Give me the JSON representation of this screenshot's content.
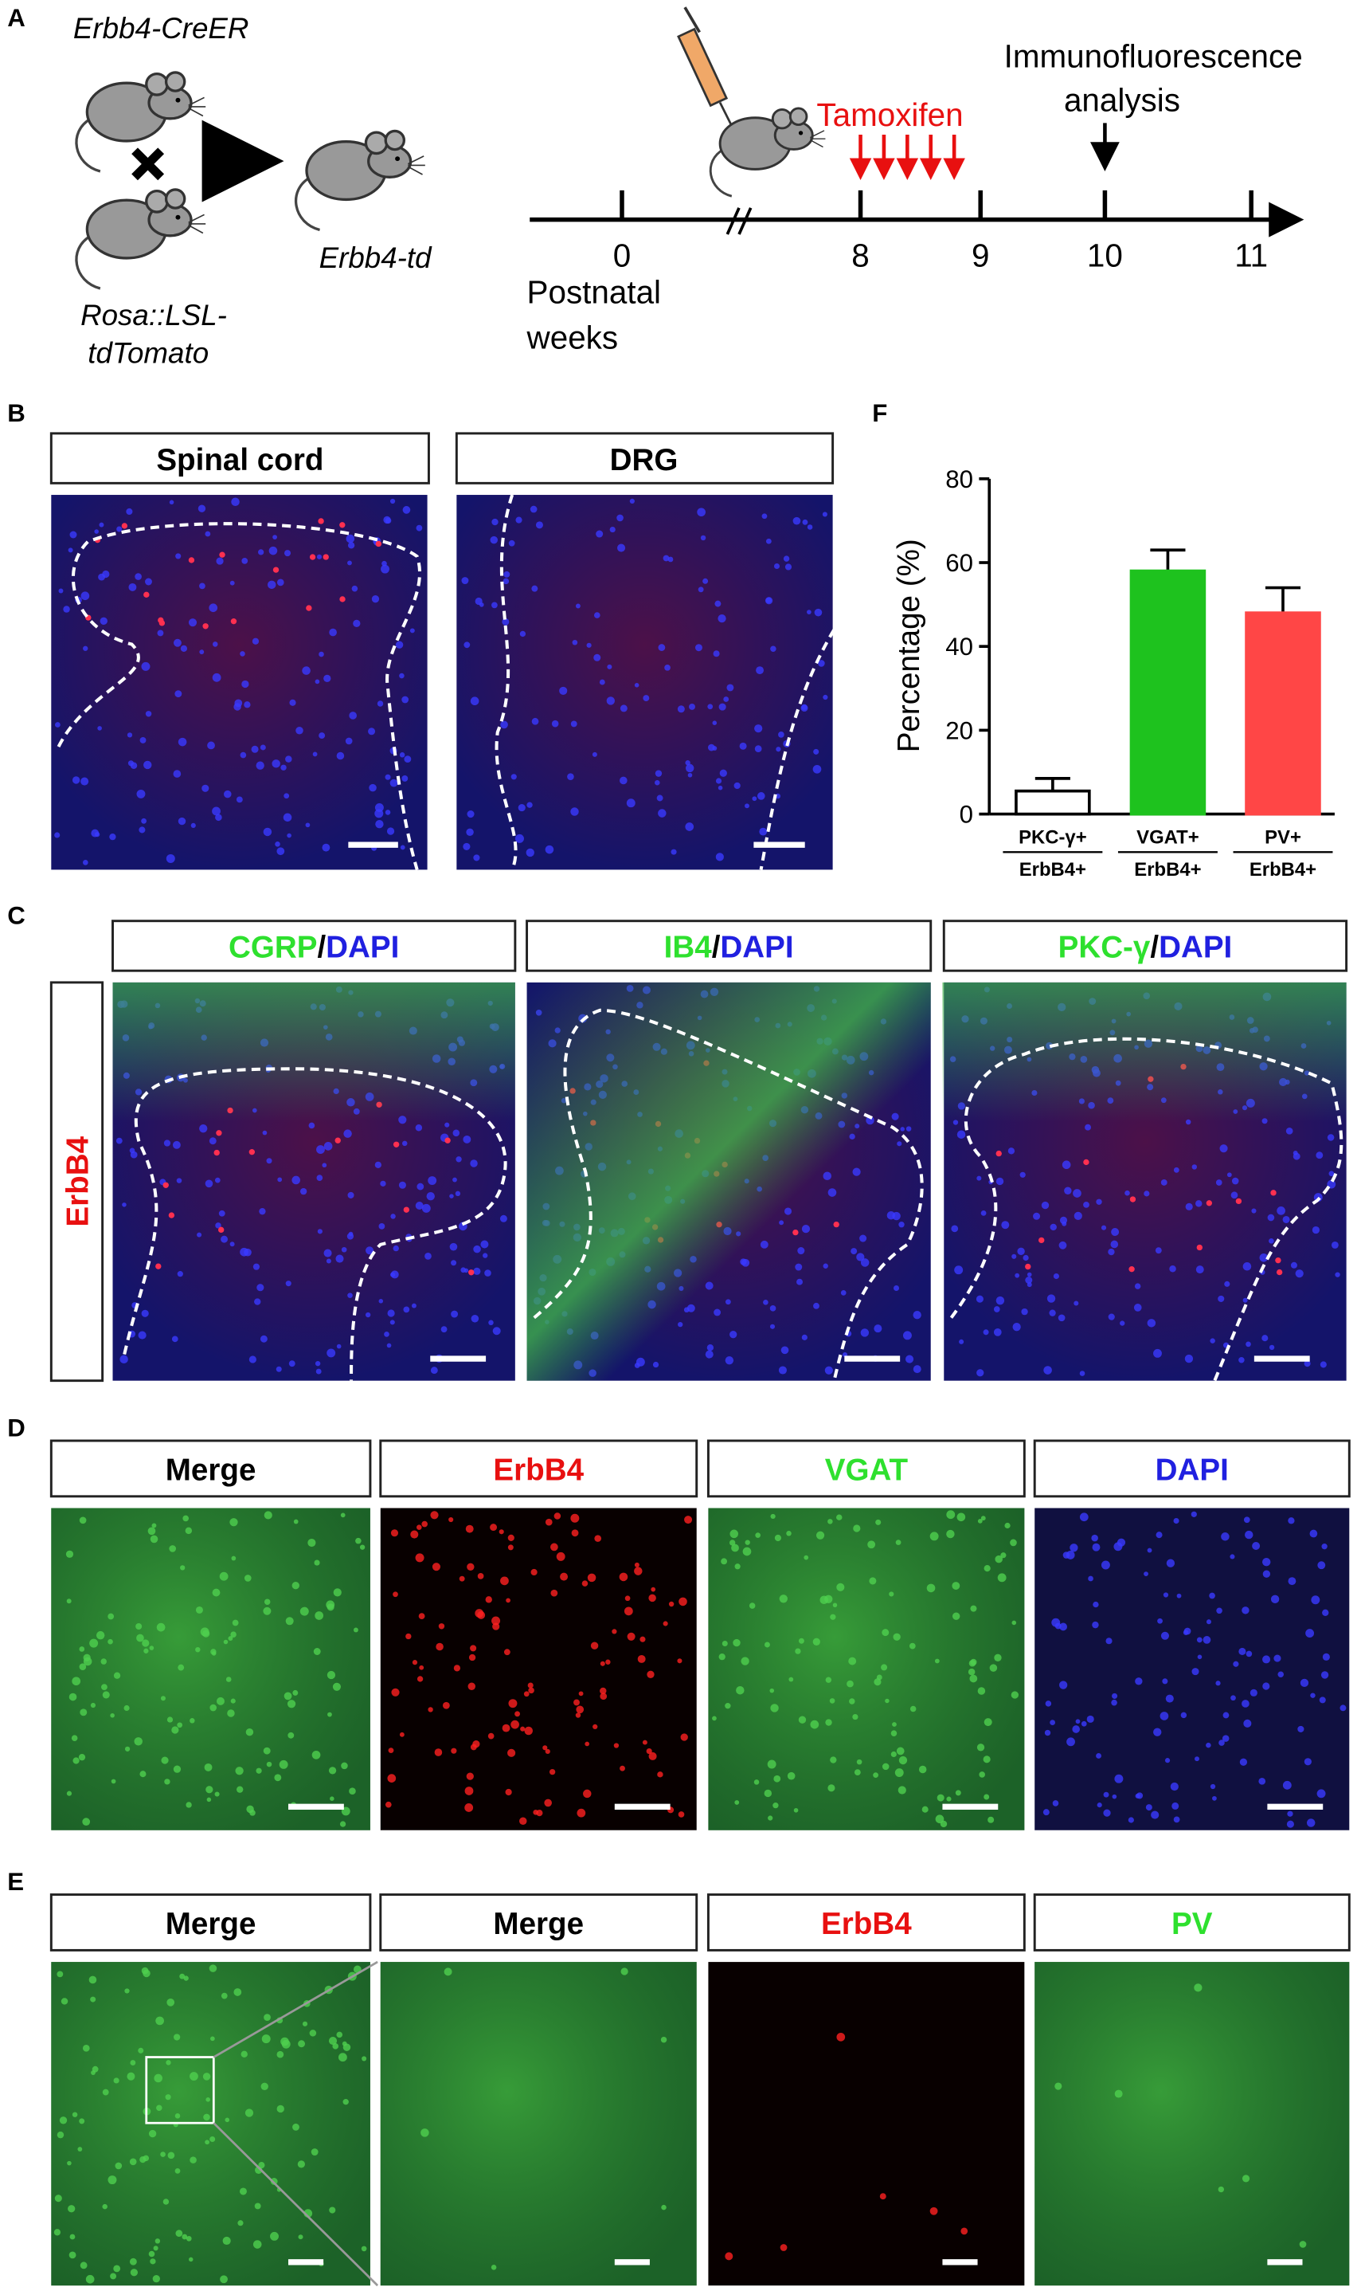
{
  "panel_a": {
    "label": "A",
    "parent_1": "Erbb4-CreER",
    "parent_2": [
      "Rosa::LSL-",
      "tdTomato"
    ],
    "offspring": "Erbb4-td",
    "weeks": [
      0,
      8,
      9,
      10,
      11
    ],
    "axis_title": [
      "Postnatal",
      "weeks"
    ],
    "injection": "Tamoxifen",
    "analysis": [
      "Immunofluorescence",
      "analysis"
    ]
  },
  "panel_b": {
    "label": "B",
    "titles": [
      "Spinal cord",
      "DRG"
    ]
  },
  "panel_c": {
    "label": "C",
    "titles": [
      [
        "CGRP",
        "/",
        "DAPI"
      ],
      [
        "IB4",
        "/",
        "DAPI"
      ],
      [
        "PKC-γ",
        "/",
        "DAPI"
      ]
    ],
    "row_label": "ErbB4"
  },
  "panel_d": {
    "label": "D",
    "titles": [
      "Merge",
      "ErbB4",
      "VGAT",
      "DAPI"
    ]
  },
  "panel_e": {
    "label": "E",
    "titles": [
      "Merge",
      "Merge",
      "ErbB4",
      "PV"
    ]
  },
  "chart_data": {
    "type": "bar",
    "panel_label": "F",
    "ylabel": "Percentage (%)",
    "categories": [
      [
        "PKC-γ+",
        "ErbB4+"
      ],
      [
        "VGAT+",
        "ErbB4+"
      ],
      [
        "PV+",
        "ErbB4+"
      ]
    ],
    "values": [
      5.5,
      58,
      48
    ],
    "errors": [
      3,
      5,
      6
    ],
    "colors": [
      "#ffffff",
      "#1ec21e",
      "#ff4646"
    ],
    "ylim": [
      0,
      80
    ],
    "yticks": [
      0,
      20,
      40,
      60,
      80
    ]
  }
}
